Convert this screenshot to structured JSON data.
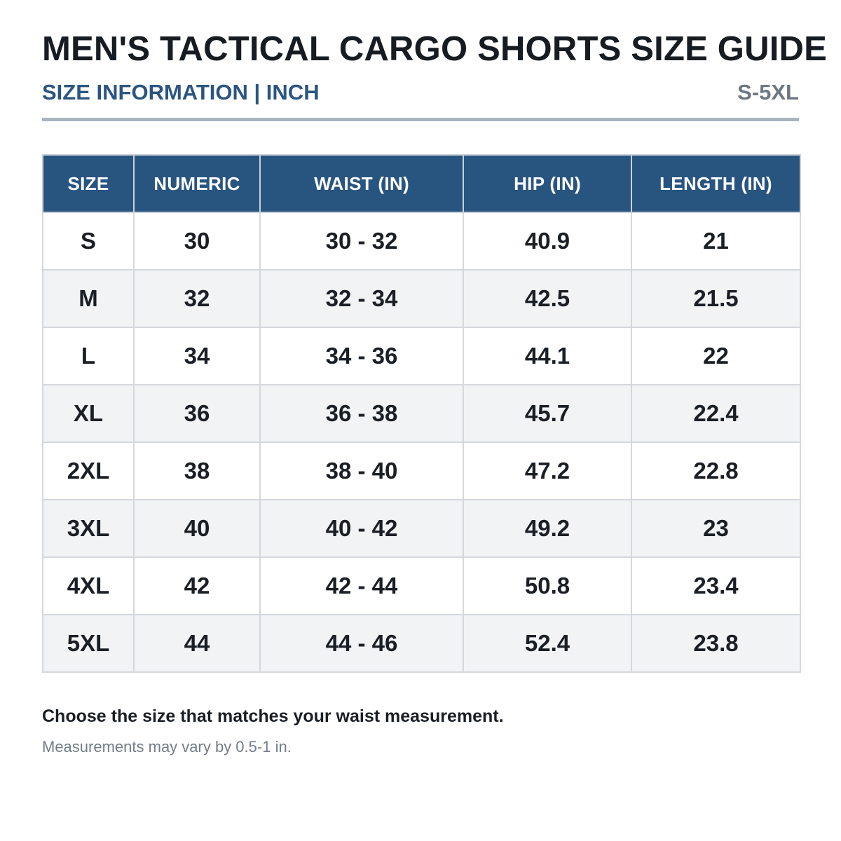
{
  "header": {
    "title": "MEN'S TACTICAL CARGO SHORTS SIZE GUIDE",
    "subtitle": "SIZE INFORMATION | INCH",
    "size_range": "S-5XL"
  },
  "table": {
    "columns": [
      "SIZE",
      "NUMERIC",
      "WAIST (IN)",
      "HIP (IN)",
      "LENGTH (IN)"
    ],
    "rows": [
      [
        "S",
        "30",
        "30 - 32",
        "40.9",
        "21"
      ],
      [
        "M",
        "32",
        "32 - 34",
        "42.5",
        "21.5"
      ],
      [
        "L",
        "34",
        "34 - 36",
        "44.1",
        "22"
      ],
      [
        "XL",
        "36",
        "36 - 38",
        "45.7",
        "22.4"
      ],
      [
        "2XL",
        "38",
        "38 - 40",
        "47.2",
        "22.8"
      ],
      [
        "3XL",
        "40",
        "40 - 42",
        "49.2",
        "23"
      ],
      [
        "4XL",
        "42",
        "42 - 44",
        "50.8",
        "23.4"
      ],
      [
        "5XL",
        "44",
        "44 - 46",
        "52.4",
        "23.8"
      ]
    ]
  },
  "footer": {
    "note": "Choose the size that matches your waist measurement.",
    "fineprint": "Measurements may vary by 0.5-1 in."
  },
  "colors": {
    "header_bg": "#285480",
    "accent_text": "#2b5580",
    "zebra_row": "#f1f3f5"
  }
}
